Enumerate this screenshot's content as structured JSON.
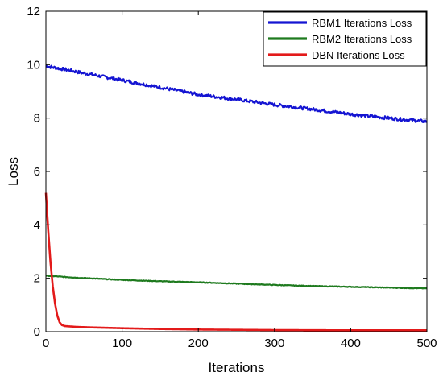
{
  "chart_data": {
    "type": "line",
    "title": "",
    "xlabel": "Iterations",
    "ylabel": "Loss",
    "xlim": [
      0,
      500
    ],
    "ylim": [
      0,
      12
    ],
    "xticks": [
      0,
      100,
      200,
      300,
      400,
      500
    ],
    "yticks": [
      0,
      2,
      4,
      6,
      8,
      10,
      12
    ],
    "xtick_labels": [
      "0",
      "100",
      "200",
      "300",
      "400",
      "500"
    ],
    "ytick_labels": [
      "0",
      "2",
      "4",
      "6",
      "8",
      "10",
      "12"
    ],
    "grid": false,
    "legend_position": "top-right",
    "series": [
      {
        "name": "RBM1 Iterations Loss",
        "color": "#1414d2",
        "x": [
          0,
          25,
          50,
          100,
          150,
          200,
          250,
          300,
          350,
          400,
          450,
          500
        ],
        "y": [
          9.95,
          9.82,
          9.68,
          9.42,
          9.15,
          8.88,
          8.7,
          8.5,
          8.33,
          8.15,
          8.0,
          7.87
        ]
      },
      {
        "name": "RBM2 Iterations Loss",
        "color": "#1e7a1e",
        "x": [
          0,
          25,
          50,
          100,
          150,
          200,
          250,
          300,
          350,
          400,
          450,
          500
        ],
        "y": [
          2.1,
          2.05,
          2.01,
          1.94,
          1.89,
          1.85,
          1.8,
          1.75,
          1.71,
          1.68,
          1.65,
          1.62
        ]
      },
      {
        "name": "DBN Iterations Loss",
        "color": "#e31a1a",
        "x": [
          0,
          3,
          6,
          9,
          12,
          15,
          18,
          21,
          25,
          40,
          60,
          100,
          150,
          200,
          300,
          400,
          500
        ],
        "y": [
          5.2,
          3.8,
          2.6,
          1.7,
          1.05,
          0.6,
          0.35,
          0.25,
          0.21,
          0.18,
          0.16,
          0.13,
          0.1,
          0.08,
          0.06,
          0.05,
          0.05
        ]
      }
    ]
  }
}
